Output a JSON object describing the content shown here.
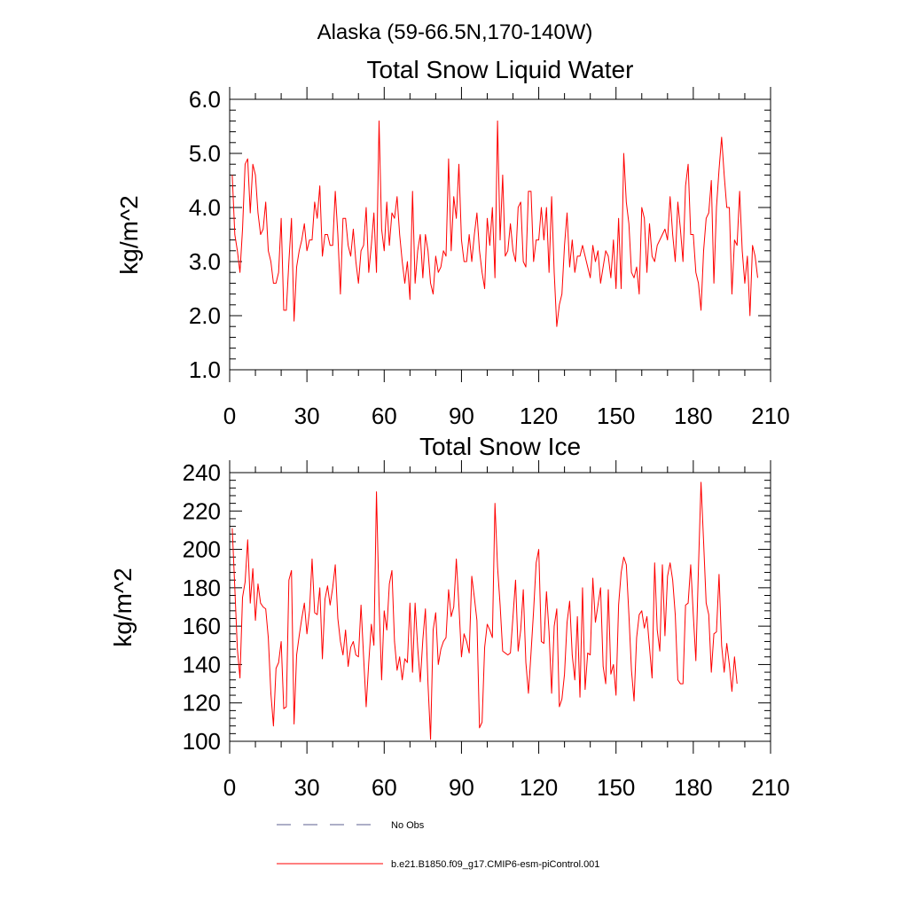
{
  "supertitle": "Alaska (59-66.5N,170-140W)",
  "colors": {
    "model": "#ff0000",
    "obs": "#5b5f8f",
    "axis": "#000000"
  },
  "legend": {
    "obs_label": "No Obs",
    "model_label": "b.e21.B1850.f09_g17.CMIP6-esm-piControl.001"
  },
  "chart_data": [
    {
      "type": "line",
      "title": "Total Snow Liquid Water",
      "xlabel": "",
      "ylabel": "kg/m^2",
      "xlim": [
        0,
        210
      ],
      "ylim": [
        1.0,
        6.0
      ],
      "xticks": [
        0,
        30,
        60,
        90,
        120,
        150,
        180,
        210
      ],
      "xtick_labels": [
        "0",
        "30",
        "60",
        "90",
        "120",
        "150",
        "180",
        "210"
      ],
      "yticks": [
        1.0,
        2.0,
        3.0,
        4.0,
        5.0,
        6.0
      ],
      "ytick_labels": [
        "1.0",
        "2.0",
        "3.0",
        "4.0",
        "5.0",
        "6.0"
      ],
      "series": [
        {
          "name": "b.e21.B1850.f09_g17.CMIP6-esm-piControl.001",
          "x_start": 1,
          "values": [
            4.6,
            3.5,
            3.2,
            2.8,
            3.6,
            4.8,
            4.9,
            3.9,
            4.8,
            4.6,
            3.9,
            3.5,
            3.6,
            4.1,
            3.2,
            3.0,
            2.6,
            2.6,
            2.8,
            3.8,
            2.1,
            2.1,
            3.0,
            3.8,
            1.9,
            2.9,
            3.2,
            3.4,
            3.7,
            3.2,
            3.4,
            3.4,
            4.1,
            3.8,
            4.4,
            3.1,
            3.5,
            3.5,
            3.3,
            3.3,
            4.3,
            3.5,
            2.4,
            3.8,
            3.8,
            3.3,
            3.1,
            3.6,
            3.0,
            2.6,
            3.2,
            3.3,
            4.0,
            2.8,
            3.3,
            3.9,
            2.8,
            5.6,
            3.6,
            3.2,
            4.1,
            3.3,
            3.9,
            3.8,
            4.2,
            3.5,
            3.0,
            2.6,
            3.0,
            2.3,
            4.3,
            2.6,
            3.2,
            3.5,
            2.7,
            3.5,
            3.2,
            2.6,
            2.4,
            3.1,
            2.8,
            2.9,
            3.2,
            3.1,
            4.9,
            3.2,
            4.2,
            3.8,
            4.8,
            3.4,
            3.0,
            3.0,
            3.5,
            3.0,
            3.5,
            3.9,
            3.2,
            2.8,
            2.5,
            3.8,
            3.3,
            4.0,
            2.7,
            5.6,
            3.4,
            4.6,
            3.1,
            3.2,
            3.7,
            3.2,
            3.0,
            4.0,
            4.1,
            3.0,
            2.9,
            4.3,
            4.3,
            3.0,
            3.4,
            3.4,
            4.0,
            3.4,
            4.0,
            2.8,
            4.2,
            2.8,
            1.8,
            2.2,
            2.4,
            3.3,
            3.9,
            2.9,
            3.4,
            2.8,
            3.1,
            3.1,
            3.3,
            3.1,
            2.9,
            2.7,
            3.3,
            3.0,
            3.2,
            2.6,
            2.9,
            3.2,
            3.1,
            2.7,
            3.4,
            2.5,
            3.8,
            2.5,
            5.0,
            4.1,
            3.7,
            2.8,
            2.7,
            2.9,
            2.4,
            4.0,
            3.8,
            2.8,
            3.7,
            3.1,
            3.0,
            3.3,
            3.4,
            3.5,
            3.6,
            3.4,
            4.2,
            3.5,
            3.0,
            4.1,
            3.6,
            3.0,
            4.4,
            4.8,
            3.5,
            3.5,
            2.8,
            2.6,
            2.1,
            3.2,
            3.8,
            3.9,
            4.5,
            2.6,
            4.0,
            4.7,
            5.3,
            4.6,
            4.0,
            4.0,
            2.4,
            3.4,
            3.3,
            4.3,
            3.2,
            2.6,
            3.1,
            2.0,
            3.3,
            3.1,
            2.7
          ]
        }
      ]
    },
    {
      "type": "line",
      "title": "Total Snow Ice",
      "xlabel": "",
      "ylabel": "kg/m^2",
      "xlim": [
        0,
        210
      ],
      "ylim": [
        100,
        240
      ],
      "xticks": [
        0,
        30,
        60,
        90,
        120,
        150,
        180,
        210
      ],
      "xtick_labels": [
        "0",
        "30",
        "60",
        "90",
        "120",
        "150",
        "180",
        "210"
      ],
      "yticks": [
        100,
        120,
        140,
        160,
        180,
        200,
        220,
        240
      ],
      "ytick_labels": [
        "100",
        "120",
        "140",
        "160",
        "180",
        "200",
        "220",
        "240"
      ],
      "series": [
        {
          "name": "b.e21.B1850.f09_g17.CMIP6-esm-piControl.001",
          "x_start": 1,
          "values": [
            211,
            180,
            148,
            133,
            175,
            183,
            205,
            172,
            190,
            163,
            182,
            172,
            170,
            169,
            154,
            125,
            108,
            138,
            141,
            152,
            117,
            118,
            184,
            189,
            109,
            145,
            155,
            164,
            172,
            156,
            168,
            195,
            167,
            166,
            180,
            143,
            174,
            181,
            171,
            180,
            192,
            164,
            152,
            145,
            158,
            139,
            149,
            152,
            145,
            144,
            171,
            144,
            118,
            141,
            161,
            150,
            230,
            172,
            132,
            168,
            158,
            182,
            189,
            152,
            137,
            144,
            132,
            143,
            141,
            172,
            136,
            172,
            149,
            131,
            153,
            169,
            130,
            101,
            158,
            167,
            140,
            148,
            152,
            154,
            179,
            165,
            170,
            195,
            171,
            144,
            156,
            152,
            146,
            186,
            175,
            163,
            107,
            110,
            149,
            161,
            158,
            154,
            224,
            191,
            171,
            147,
            146,
            145,
            146,
            165,
            184,
            147,
            158,
            179,
            141,
            125,
            146,
            168,
            193,
            200,
            152,
            151,
            178,
            157,
            125,
            160,
            169,
            118,
            122,
            135,
            162,
            173,
            145,
            132,
            165,
            123,
            180,
            127,
            146,
            145,
            185,
            162,
            171,
            180,
            139,
            130,
            179,
            135,
            140,
            124,
            171,
            188,
            196,
            192,
            166,
            137,
            121,
            154,
            166,
            168,
            159,
            165,
            149,
            133,
            193,
            158,
            147,
            192,
            155,
            186,
            193,
            184,
            166,
            132,
            130,
            130,
            171,
            172,
            192,
            166,
            142,
            190,
            235,
            204,
            172,
            166,
            136,
            156,
            157,
            187,
            150,
            136,
            151,
            140,
            126,
            144,
            130
          ]
        }
      ]
    }
  ]
}
